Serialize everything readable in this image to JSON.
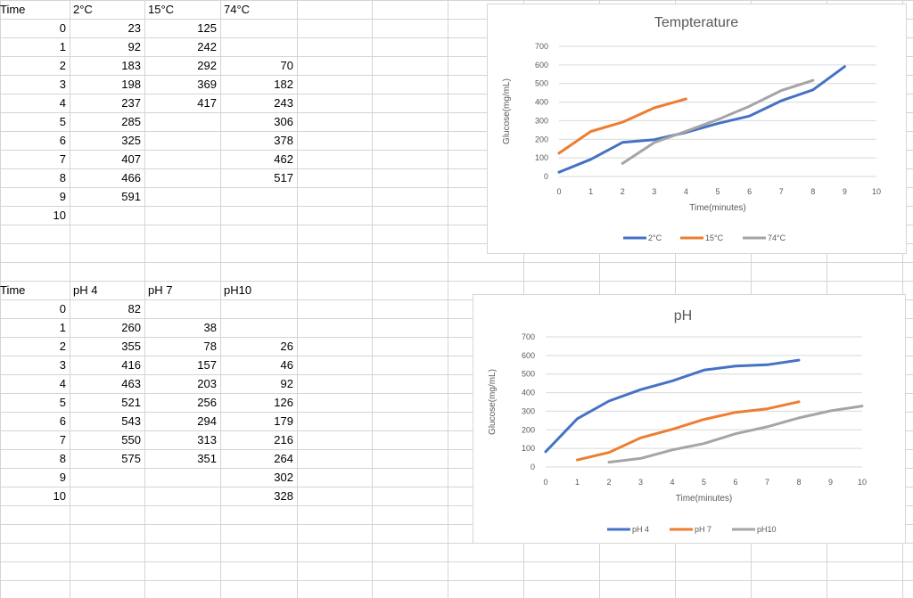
{
  "table1": {
    "headers": [
      "Time",
      "2°C",
      "15°C",
      "74°C"
    ],
    "rows": [
      [
        "0",
        "23",
        "125",
        ""
      ],
      [
        "1",
        "92",
        "242",
        ""
      ],
      [
        "2",
        "183",
        "292",
        "70"
      ],
      [
        "3",
        "198",
        "369",
        "182"
      ],
      [
        "4",
        "237",
        "417",
        "243"
      ],
      [
        "5",
        "285",
        "",
        "306"
      ],
      [
        "6",
        "325",
        "",
        "378"
      ],
      [
        "7",
        "407",
        "",
        "462"
      ],
      [
        "8",
        "466",
        "",
        "517"
      ],
      [
        "9",
        "591",
        "",
        ""
      ],
      [
        "10",
        "",
        "",
        ""
      ]
    ]
  },
  "table2": {
    "headers": [
      "Time",
      "pH 4",
      "pH 7",
      "pH10"
    ],
    "rows": [
      [
        "0",
        "82",
        "",
        ""
      ],
      [
        "1",
        "260",
        "38",
        ""
      ],
      [
        "2",
        "355",
        "78",
        "26"
      ],
      [
        "3",
        "416",
        "157",
        "46"
      ],
      [
        "4",
        "463",
        "203",
        "92"
      ],
      [
        "5",
        "521",
        "256",
        "126"
      ],
      [
        "6",
        "543",
        "294",
        "179"
      ],
      [
        "7",
        "550",
        "313",
        "216"
      ],
      [
        "8",
        "575",
        "351",
        "264"
      ],
      [
        "9",
        "",
        "",
        "302"
      ],
      [
        "10",
        "",
        "",
        "328"
      ]
    ]
  },
  "colors": {
    "blue": "#4472c4",
    "orange": "#ed7d31",
    "gray": "#a5a5a5"
  },
  "chart_data": [
    {
      "type": "line",
      "title": "Tempterature",
      "xlabel": "Time(minutes)",
      "ylabel": "Glucose(mg/mL)",
      "xlim": [
        0,
        10
      ],
      "ylim": [
        0,
        700
      ],
      "xticks": [
        "0",
        "1",
        "2",
        "3",
        "4",
        "5",
        "6",
        "7",
        "8",
        "9",
        "10"
      ],
      "yticks": [
        "0",
        "100",
        "200",
        "300",
        "400",
        "500",
        "600",
        "700"
      ],
      "grid": true,
      "legend": "bottom",
      "series": [
        {
          "name": "2°C",
          "color": "#4472c4",
          "x": [
            0,
            1,
            2,
            3,
            4,
            5,
            6,
            7,
            8,
            9
          ],
          "y": [
            23,
            92,
            183,
            198,
            237,
            285,
            325,
            407,
            466,
            591
          ]
        },
        {
          "name": "15°C",
          "color": "#ed7d31",
          "x": [
            0,
            1,
            2,
            3,
            4
          ],
          "y": [
            125,
            242,
            292,
            369,
            417
          ]
        },
        {
          "name": "74°C",
          "color": "#a5a5a5",
          "x": [
            2,
            3,
            4,
            5,
            6,
            7,
            8
          ],
          "y": [
            70,
            182,
            243,
            306,
            378,
            462,
            517
          ]
        }
      ]
    },
    {
      "type": "line",
      "title": "pH",
      "xlabel": "Time(minutes)",
      "ylabel": "Glucose(mg/mL)",
      "xlim": [
        0,
        10
      ],
      "ylim": [
        0,
        700
      ],
      "xticks": [
        "0",
        "1",
        "2",
        "3",
        "4",
        "5",
        "6",
        "7",
        "8",
        "9",
        "10"
      ],
      "yticks": [
        "0",
        "100",
        "200",
        "300",
        "400",
        "500",
        "600",
        "700"
      ],
      "grid": true,
      "legend": "bottom",
      "series": [
        {
          "name": "pH 4",
          "color": "#4472c4",
          "x": [
            0,
            1,
            2,
            3,
            4,
            5,
            6,
            7,
            8
          ],
          "y": [
            82,
            260,
            355,
            416,
            463,
            521,
            543,
            550,
            575
          ]
        },
        {
          "name": "pH 7",
          "color": "#ed7d31",
          "x": [
            1,
            2,
            3,
            4,
            5,
            6,
            7,
            8
          ],
          "y": [
            38,
            78,
            157,
            203,
            256,
            294,
            313,
            351
          ]
        },
        {
          "name": "pH10",
          "color": "#a5a5a5",
          "x": [
            2,
            3,
            4,
            5,
            6,
            7,
            8,
            9,
            10
          ],
          "y": [
            26,
            46,
            92,
            126,
            179,
            216,
            264,
            302,
            328
          ]
        }
      ]
    }
  ]
}
